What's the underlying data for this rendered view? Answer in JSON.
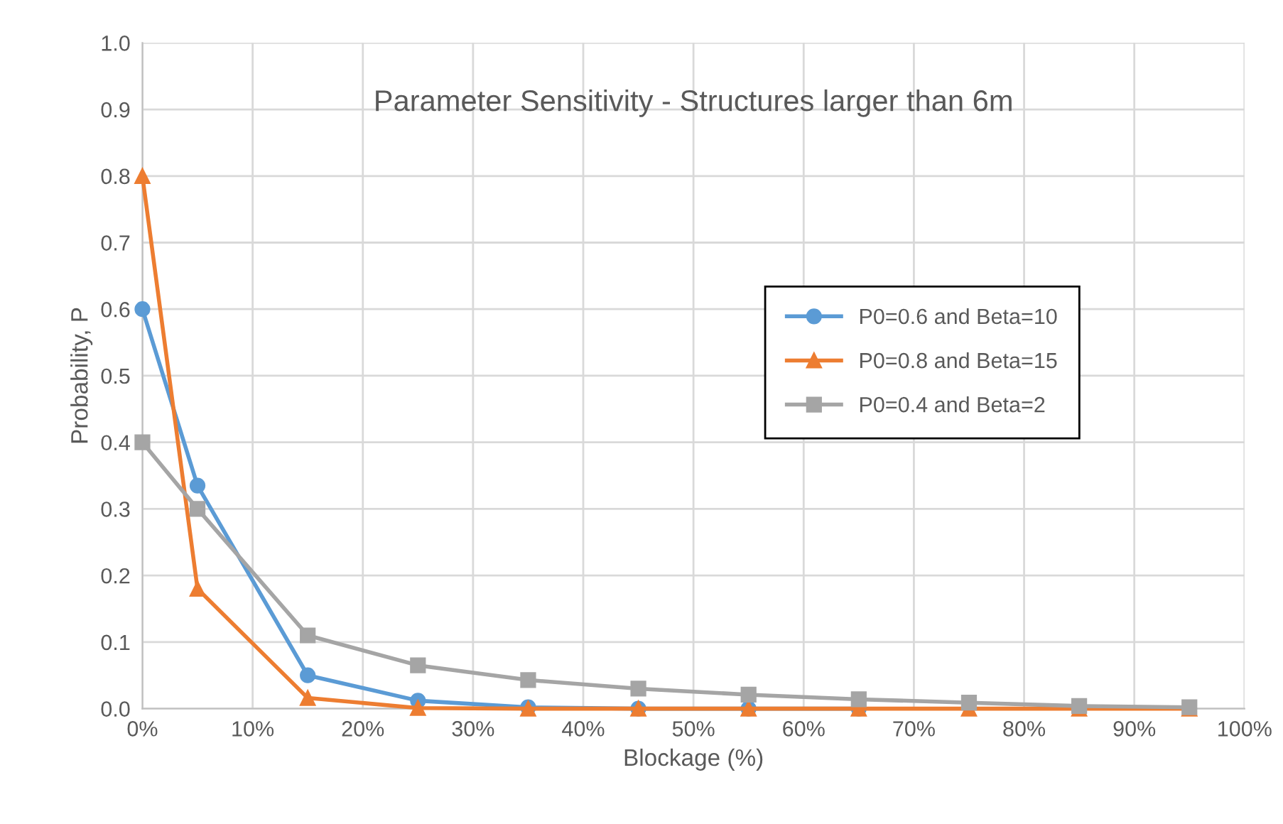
{
  "chart_data": {
    "type": "line",
    "title": "Parameter Sensitivity - Structures larger than 6m",
    "xlabel": "Blockage (%)",
    "ylabel": "Probability, P",
    "x": [
      0,
      5,
      15,
      25,
      35,
      45,
      55,
      65,
      75,
      85,
      95
    ],
    "series": [
      {
        "name": "P0=0.6 and Beta=10",
        "color": "#5b9bd5",
        "marker": "circle",
        "values": [
          0.6,
          0.335,
          0.05,
          0.012,
          0.002,
          0.0,
          0.0,
          0.0,
          null,
          null,
          null
        ]
      },
      {
        "name": "P0=0.8 and Beta=15",
        "color": "#ed7d31",
        "marker": "triangle",
        "values": [
          0.8,
          0.18,
          0.016,
          0.001,
          0.0,
          0.0,
          0.0,
          0.0,
          0.0,
          0.0,
          0.0
        ]
      },
      {
        "name": "P0=0.4 and Beta=2",
        "color": "#a5a5a5",
        "marker": "square",
        "values": [
          0.4,
          0.3,
          0.11,
          0.065,
          0.043,
          0.03,
          0.021,
          0.014,
          0.009,
          0.004,
          0.002
        ]
      }
    ],
    "xlim": [
      0,
      100
    ],
    "xticks": [
      {
        "value": 0,
        "label": "0%"
      },
      {
        "value": 10,
        "label": "10%"
      },
      {
        "value": 20,
        "label": "20%"
      },
      {
        "value": 30,
        "label": "30%"
      },
      {
        "value": 40,
        "label": "40%"
      },
      {
        "value": 50,
        "label": "50%"
      },
      {
        "value": 60,
        "label": "60%"
      },
      {
        "value": 70,
        "label": "70%"
      },
      {
        "value": 80,
        "label": "80%"
      },
      {
        "value": 90,
        "label": "90%"
      },
      {
        "value": 100,
        "label": "100%"
      }
    ],
    "ylim": [
      0,
      1
    ],
    "yticks": [
      {
        "value": 0,
        "label": "0.0"
      },
      {
        "value": 0.1,
        "label": "0.1"
      },
      {
        "value": 0.2,
        "label": "0.2"
      },
      {
        "value": 0.3,
        "label": "0.3"
      },
      {
        "value": 0.4,
        "label": "0.4"
      },
      {
        "value": 0.5,
        "label": "0.5"
      },
      {
        "value": 0.6,
        "label": "0.6"
      },
      {
        "value": 0.7,
        "label": "0.7"
      },
      {
        "value": 0.8,
        "label": "0.8"
      },
      {
        "value": 0.9,
        "label": "0.9"
      },
      {
        "value": 1,
        "label": "1.0"
      }
    ],
    "grid": true,
    "legend": "right",
    "line_style": "solid"
  }
}
